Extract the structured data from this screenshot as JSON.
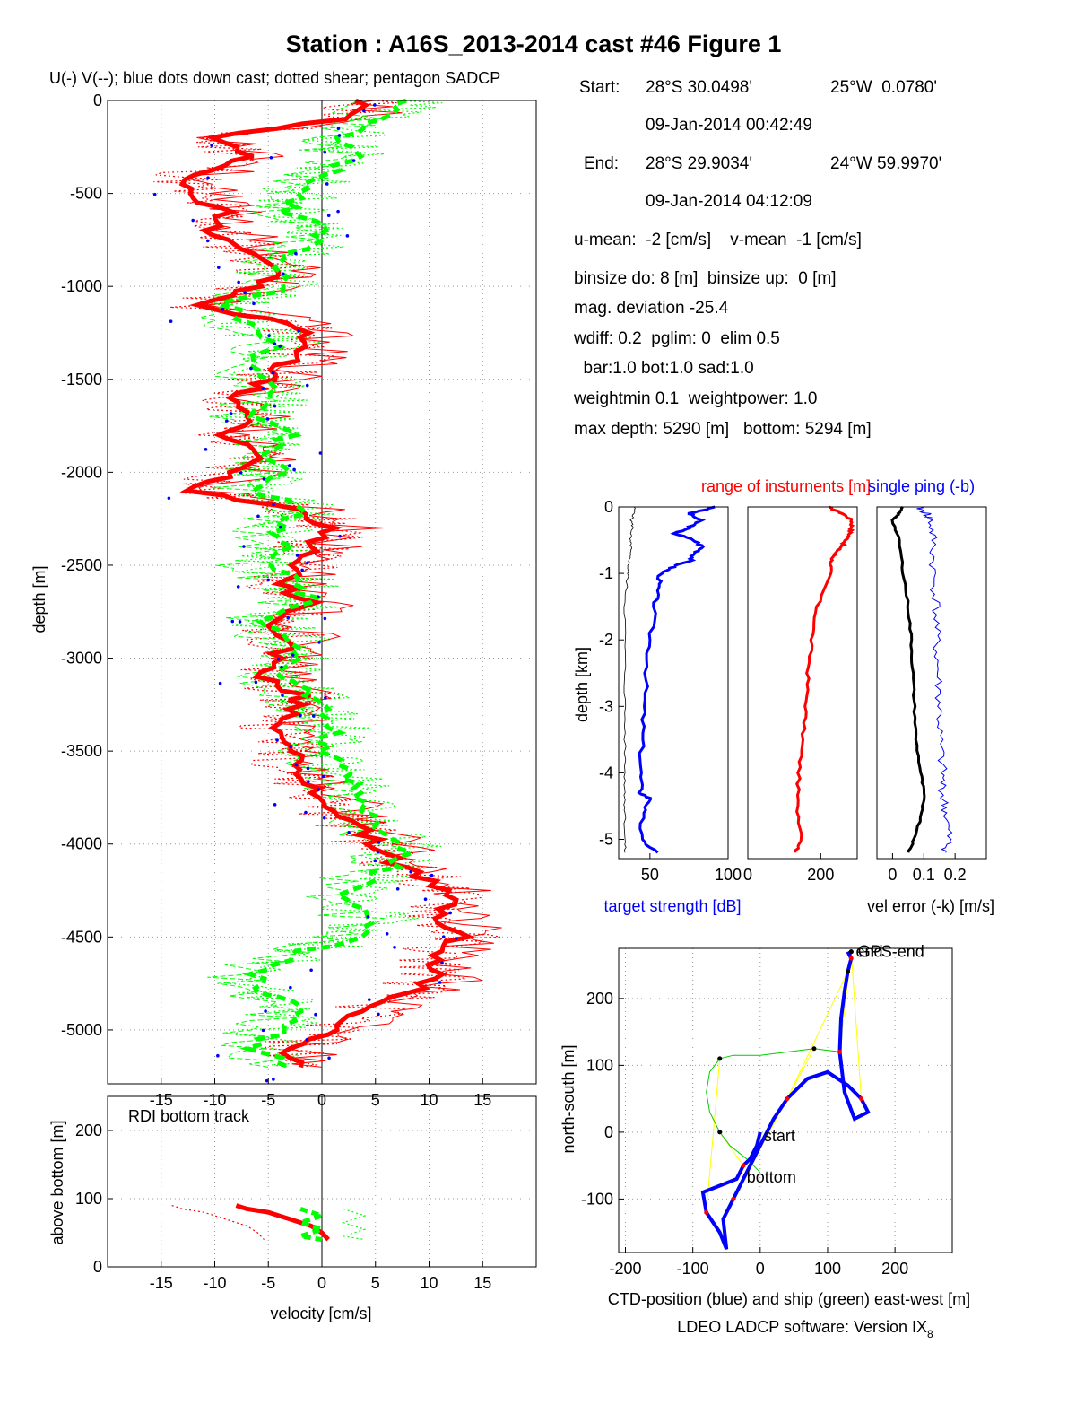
{
  "title": "Station : A16S_2013-2014 cast #46  Figure 1",
  "header_text": "U(-) V(--); blue dots down cast; dotted shear; pentagon SADCP",
  "info": {
    "start_label": "Start:",
    "start_lat": "28°S 30.0498'",
    "start_lon": "25°W  0.0780'",
    "start_time": "09-Jan-2014 00:42:49",
    "end_label": "End:",
    "end_lat": "28°S 29.9034'",
    "end_lon": "24°W 59.9970'",
    "end_time": "09-Jan-2014 04:12:09",
    "means": "u-mean:  -2 [cm/s]    v-mean  -1 [cm/s]",
    "binsize": "binsize do: 8 [m]  binsize up:  0 [m]",
    "mag": "mag. deviation -25.4",
    "wdiff": "wdiff: 0.2  pglim: 0  elim 0.5",
    "bar": "  bar:1.0 bot:1.0 sad:1.0",
    "weight": "weightmin 0.1  weightpower: 1.0",
    "depth": "max depth: 5290 [m]   bottom: 5294 [m]"
  },
  "footer": "LDEO LADCP software: Version IX",
  "footer_sub": "8",
  "colors": {
    "u": "#ff0000",
    "v": "#00ff00",
    "down": "#0000ff",
    "ctd": "#0000ff",
    "ship": "#00cc00",
    "yellow": "#ffff00"
  },
  "chart_data": [
    {
      "type": "line",
      "name": "velocity-profile",
      "xlabel": "velocity [cm/s]",
      "ylabel": "depth [m]",
      "xlim": [
        -20,
        20
      ],
      "ylim": [
        -5290,
        0
      ],
      "xticks": [
        -15,
        -10,
        -5,
        0,
        5,
        10,
        15
      ],
      "yticks": [
        0,
        -500,
        -1000,
        -1500,
        -2000,
        -2500,
        -3000,
        -3500,
        -4000,
        -4500,
        -5000
      ],
      "grid": true,
      "depth": [
        0,
        -100,
        -200,
        -300,
        -400,
        -500,
        -600,
        -700,
        -800,
        -900,
        -1000,
        -1100,
        -1200,
        -1300,
        -1400,
        -1500,
        -1600,
        -1700,
        -1800,
        -1900,
        -2000,
        -2100,
        -2200,
        -2300,
        -2400,
        -2500,
        -2600,
        -2700,
        -2800,
        -2900,
        -3000,
        -3100,
        -3200,
        -3300,
        -3400,
        -3500,
        -3600,
        -3700,
        -3800,
        -3900,
        -4000,
        -4100,
        -4200,
        -4300,
        -4400,
        -4500,
        -4600,
        -4700,
        -4800,
        -4900,
        -5000,
        -5100,
        -5200
      ],
      "series": [
        {
          "name": "U(-)",
          "values": [
            4,
            2,
            -11,
            -6,
            -12,
            -13,
            -9,
            -10,
            -7,
            -4,
            -6,
            -12,
            -3,
            -1,
            -3,
            -5,
            -8,
            -7,
            -9,
            -6,
            -8,
            -12,
            -2,
            1,
            -1,
            -2,
            -4,
            -1,
            -5,
            -3,
            -4,
            -6,
            -2,
            -3,
            -4,
            -2,
            -3,
            -1,
            1,
            3,
            5,
            7,
            10,
            12,
            11,
            13,
            10,
            11,
            8,
            4,
            1,
            -3,
            -2
          ]
        },
        {
          "name": "V(--)",
          "values": [
            8,
            5,
            2,
            3,
            0,
            -2,
            -3,
            1,
            -2,
            -5,
            -3,
            -9,
            -7,
            -4,
            -6,
            -5,
            -4,
            -7,
            -3,
            -5,
            -4,
            -6,
            -2,
            -4,
            -3,
            -5,
            -2,
            -1,
            -5,
            -3,
            -2,
            -4,
            -1,
            0,
            1,
            0,
            2,
            3,
            4,
            5,
            8,
            7,
            4,
            2,
            5,
            3,
            -3,
            -6,
            -5,
            -2,
            -4,
            -6,
            -3
          ]
        }
      ]
    },
    {
      "type": "line",
      "name": "bottom-track",
      "title": "RDI bottom track",
      "xlabel": "velocity [cm/s]",
      "ylabel": "above bottom [m]",
      "xlim": [
        -20,
        20
      ],
      "ylim": [
        0,
        250
      ],
      "xticks": [
        -15,
        -10,
        -5,
        0,
        5,
        10,
        15
      ],
      "yticks": [
        0,
        100,
        200
      ],
      "grid": true,
      "series": [
        {
          "name": "U",
          "height": [
            90,
            85,
            80,
            75,
            70,
            65,
            60,
            55,
            50,
            45,
            40
          ],
          "values": [
            -8,
            -7,
            -5,
            -4,
            -3,
            -2,
            -1,
            -0.5,
            0,
            0.3,
            0.6
          ]
        },
        {
          "name": "V",
          "height": [
            85,
            80,
            75,
            70,
            65,
            60,
            55,
            50,
            45,
            40
          ],
          "values": [
            -2,
            -1,
            0,
            -1,
            -2,
            -1,
            0,
            -1,
            -2,
            0
          ]
        }
      ]
    },
    {
      "type": "line",
      "name": "target-strength",
      "xlabel": "target strength [dB]",
      "ylabel": "depth [km]",
      "xlim": [
        30,
        100
      ],
      "ylim": [
        -5.29,
        0
      ],
      "xticks": [
        50,
        100
      ],
      "yticks": [
        0,
        -1,
        -2,
        -3,
        -4,
        -5
      ],
      "depth": [
        0,
        -0.1,
        -0.2,
        -0.3,
        -0.4,
        -0.5,
        -0.6,
        -0.7,
        -0.8,
        -0.9,
        -1.0,
        -1.2,
        -1.5,
        -2.0,
        -2.5,
        -3.0,
        -3.5,
        -4.0,
        -4.3,
        -4.4,
        -4.6,
        -5.0,
        -5.2
      ],
      "series": [
        {
          "name": "target strength",
          "values": [
            92,
            75,
            82,
            76,
            66,
            78,
            84,
            79,
            76,
            65,
            57,
            55,
            53,
            50,
            48,
            46,
            45,
            44,
            44,
            51,
            45,
            44,
            55
          ]
        },
        {
          "name": "noise",
          "values": [
            40,
            40,
            38,
            39,
            38,
            37,
            38,
            37,
            37,
            36,
            36,
            35,
            34,
            34,
            34,
            34,
            34,
            34,
            34,
            34,
            34,
            34,
            34
          ]
        }
      ]
    },
    {
      "type": "line",
      "name": "range-of-instruments",
      "title": "range of insturnents [m]",
      "xlim": [
        0,
        300
      ],
      "ylim": [
        -5.29,
        0
      ],
      "xticks": [
        0,
        200
      ],
      "depth": [
        0,
        -0.1,
        -0.2,
        -0.3,
        -0.4,
        -0.5,
        -0.6,
        -0.7,
        -0.8,
        -1.0,
        -1.5,
        -2.0,
        -2.5,
        -3.0,
        -3.5,
        -4.0,
        -4.5,
        -5.0,
        -5.2
      ],
      "series": [
        {
          "name": "range",
          "values": [
            220,
            260,
            285,
            285,
            280,
            270,
            255,
            240,
            230,
            225,
            190,
            175,
            165,
            160,
            150,
            140,
            135,
            150,
            130
          ]
        }
      ]
    },
    {
      "type": "line",
      "name": "vel-error",
      "title": "single ping (-b)",
      "xlabel": "vel error (-k) [m/s]",
      "xlim": [
        -0.05,
        0.3
      ],
      "ylim": [
        -5.29,
        0
      ],
      "xticks": [
        0,
        0.1,
        0.2
      ],
      "depth": [
        0,
        -0.1,
        -0.2,
        -0.5,
        -1.0,
        -1.5,
        -2.0,
        -2.5,
        -3.0,
        -3.5,
        -4.0,
        -4.3,
        -4.6,
        -5.0,
        -5.2
      ],
      "series": [
        {
          "name": "vel error",
          "values": [
            0.03,
            0.02,
            0.0,
            0.02,
            0.035,
            0.05,
            0.06,
            0.065,
            0.07,
            0.075,
            0.09,
            0.1,
            0.095,
            0.07,
            0.05
          ]
        },
        {
          "name": "single ping",
          "values": [
            0.08,
            0.11,
            0.12,
            0.13,
            0.13,
            0.14,
            0.14,
            0.145,
            0.15,
            0.15,
            0.16,
            0.16,
            0.17,
            0.18,
            0.17
          ]
        }
      ]
    },
    {
      "type": "line",
      "name": "position",
      "xlabel": "CTD-position (blue) and ship (green) east-west [m]",
      "ylabel": "north-south [m]",
      "xlim": [
        -210,
        285
      ],
      "ylim": [
        -180,
        275
      ],
      "xticks": [
        -200,
        -100,
        0,
        100,
        200
      ],
      "yticks": [
        -100,
        0,
        100,
        200
      ],
      "grid": true,
      "labels": {
        "start": "start",
        "bottom": "bottom",
        "end": "end",
        "gps_end": "GPS-end"
      },
      "series": [
        {
          "name": "CTD",
          "x": [
            0,
            -5,
            -15,
            -25,
            -35,
            -60,
            -85,
            -80,
            -60,
            -50,
            -55,
            -40,
            -20,
            0,
            20,
            40,
            70,
            100,
            130,
            150,
            160,
            140,
            125,
            118,
            120,
            125,
            130,
            135,
            130
          ],
          "y": [
            0,
            -20,
            -40,
            -50,
            -70,
            -80,
            -90,
            -120,
            -150,
            -175,
            -130,
            -100,
            -60,
            -20,
            20,
            50,
            80,
            90,
            70,
            50,
            30,
            20,
            60,
            120,
            170,
            210,
            240,
            260,
            270
          ]
        },
        {
          "name": "ship",
          "x": [
            0,
            -20,
            -45,
            -60,
            -75,
            -80,
            -75,
            -60,
            -40,
            0,
            40,
            80,
            120,
            122,
            125,
            130,
            135
          ],
          "y": [
            -60,
            -40,
            -20,
            0,
            30,
            60,
            90,
            110,
            115,
            115,
            120,
            125,
            120,
            170,
            210,
            240,
            270
          ]
        }
      ]
    }
  ]
}
